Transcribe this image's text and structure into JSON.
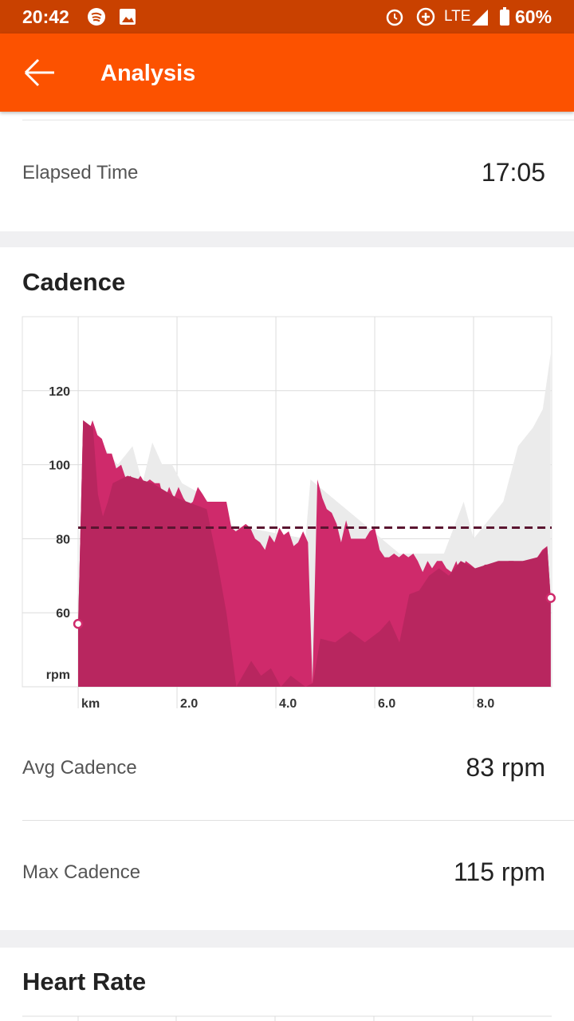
{
  "status_bar": {
    "time": "20:42",
    "network": "LTE",
    "battery": "60%"
  },
  "app_bar": {
    "title": "Analysis"
  },
  "rows": [
    {
      "label": "Elapsed Time",
      "value": "17:05"
    }
  ],
  "cadence": {
    "title": "Cadence",
    "chart_data": {
      "type": "area",
      "xlim": [
        -1.13,
        9.58
      ],
      "ylim": [
        40,
        140
      ],
      "xticks": [
        {
          "value": 0,
          "label": "km"
        },
        {
          "value": 2,
          "label": "2.0"
        },
        {
          "value": 4,
          "label": "4.0"
        },
        {
          "value": 6,
          "label": "6.0"
        },
        {
          "value": 8,
          "label": "8.0"
        }
      ],
      "yticks": [
        {
          "value": 40,
          "label": "rpm"
        },
        60,
        80,
        100,
        120
      ],
      "grid": true,
      "average": 83,
      "average_color": "#5a1530",
      "series": [
        {
          "color": "#ebebeb",
          "x": [
            0,
            0.1,
            0.5,
            0.8,
            1.1,
            1.3,
            1.5,
            1.7,
            1.9,
            2.1,
            2.5,
            3.0,
            4.6,
            4.7,
            6.5,
            7.0,
            7.4,
            7.8,
            8.0,
            8.3,
            8.6,
            8.9,
            9.2,
            9.4,
            9.56
          ],
          "values": [
            57,
            112,
            105,
            100,
            105,
            95,
            106,
            100,
            100,
            95,
            92,
            84,
            80,
            96,
            76,
            76,
            76,
            90,
            80,
            85,
            90,
            105,
            110,
            115,
            130
          ]
        },
        {
          "color": "#cf2a6b",
          "x": [
            0,
            0.1,
            0.19,
            0.29,
            0.39,
            0.48,
            0.58,
            0.68,
            0.77,
            0.87,
            0.97,
            1.06,
            1.16,
            1.26,
            1.35,
            1.45,
            1.55,
            1.65,
            1.74,
            1.84,
            1.94,
            2.03,
            2.13,
            2.23,
            2.32,
            2.42,
            2.52,
            2.61,
            2.71,
            2.81,
            2.9,
            3.0,
            3.1,
            3.19,
            3.29,
            3.39,
            3.48,
            3.58,
            3.68,
            3.78,
            3.87,
            3.97,
            4.07,
            4.16,
            4.26,
            4.36,
            4.45,
            4.55,
            4.65,
            4.74,
            4.84,
            4.94,
            5.03,
            5.13,
            5.23,
            5.32,
            5.42,
            5.52,
            5.61,
            5.71,
            5.81,
            5.9,
            6.0,
            6.1,
            6.2,
            6.29,
            6.39,
            6.49,
            6.58,
            6.68,
            6.78,
            6.87,
            6.97,
            7.07,
            7.16,
            7.26,
            7.36,
            7.45,
            7.55,
            7.65,
            7.74,
            7.84,
            7.94,
            8.03,
            8.13,
            8.23,
            8.32,
            8.42,
            8.52,
            8.62,
            8.71,
            8.81,
            8.91,
            9.0,
            9.1,
            9.2,
            9.29,
            9.39,
            9.49,
            9.56
          ],
          "values": [
            57,
            112,
            108,
            112,
            108,
            107,
            103,
            103,
            99,
            100,
            96,
            97,
            95,
            97,
            95,
            96,
            95,
            95,
            90,
            94,
            91,
            94,
            91,
            89,
            90,
            94,
            92,
            90,
            90,
            90,
            90,
            90,
            83,
            82,
            83,
            84,
            83,
            80,
            79,
            77,
            81,
            79,
            83,
            81,
            82,
            78,
            79,
            82,
            79,
            41,
            96,
            91,
            88,
            87,
            84,
            79,
            85,
            80,
            80,
            80,
            80,
            82,
            83,
            77,
            75,
            75,
            76,
            75,
            76,
            75,
            76,
            74,
            71,
            74,
            72,
            74,
            74,
            72,
            71,
            74,
            70,
            74,
            73,
            72,
            72,
            73,
            73,
            73,
            74,
            73,
            74,
            74,
            72,
            74,
            74,
            74,
            75,
            77,
            78,
            64
          ]
        },
        {
          "color": "#b8265f",
          "x": [
            0,
            0.1,
            0.3,
            0.4,
            0.5,
            0.6,
            0.7,
            1.0,
            1.5,
            2.0,
            2.6,
            2.8,
            3.0,
            3.2,
            3.5,
            3.7,
            3.9,
            4.1,
            4.3,
            4.6,
            4.75,
            4.9,
            5.2,
            5.5,
            5.8,
            6.1,
            6.3,
            6.5,
            6.7,
            6.9,
            7.1,
            7.3,
            7.5,
            7.74,
            8.03,
            8.5,
            9.0,
            9.29,
            9.49,
            9.56
          ],
          "values": [
            57,
            112,
            110,
            92,
            86,
            90,
            95,
            97,
            95,
            91,
            88,
            75,
            60,
            40,
            47,
            43,
            45,
            40,
            43,
            40,
            41,
            53,
            52,
            55,
            52,
            55,
            58,
            52,
            65,
            66,
            70,
            72,
            70,
            74,
            72,
            74,
            74,
            75,
            78,
            64
          ]
        }
      ]
    },
    "stats": [
      {
        "label": "Avg Cadence",
        "value": "83 rpm"
      },
      {
        "label": "Max Cadence",
        "value": "115 rpm"
      }
    ]
  },
  "heart_rate": {
    "title": "Heart Rate"
  }
}
